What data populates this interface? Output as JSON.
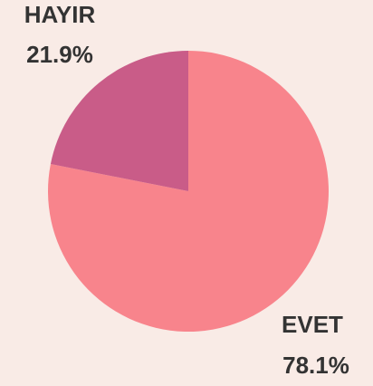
{
  "chart_data": {
    "type": "pie",
    "categories": [
      "EVET",
      "HAYIR"
    ],
    "values": [
      78.1,
      21.9
    ],
    "value_labels": [
      "78.1%",
      "21.9%"
    ],
    "colors": [
      "#f8848c",
      "#c95c88"
    ]
  }
}
